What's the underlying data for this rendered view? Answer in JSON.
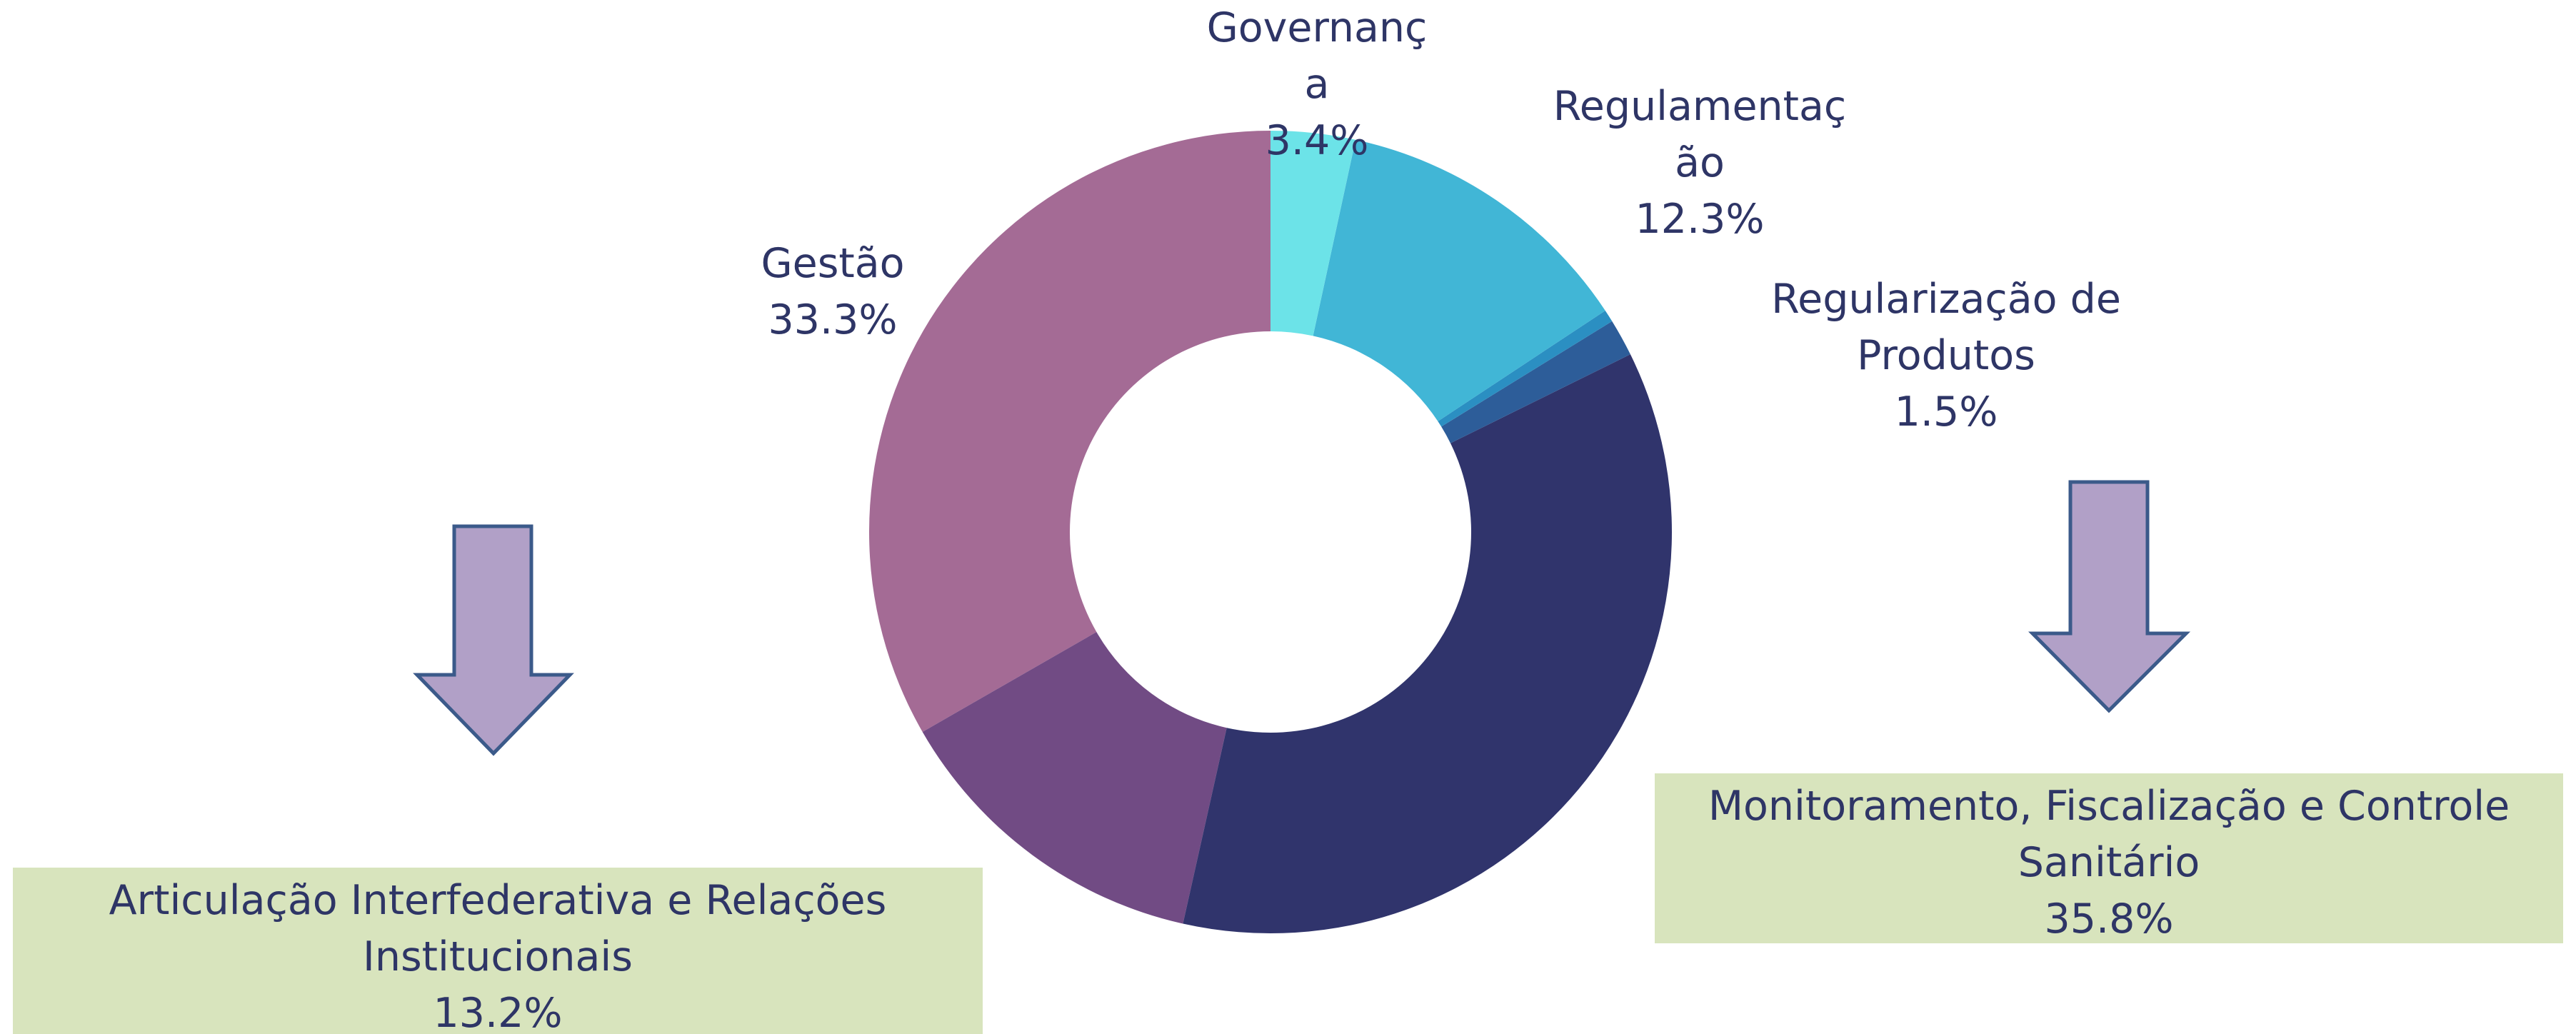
{
  "chart_data": {
    "type": "donut",
    "categories": [
      "Governança",
      "Regulamentação",
      null,
      "Regularização de Produtos",
      "Monitoramento, Fiscalização e Controle Sanitário",
      "Articulação Interfederativa e Relações Institucionais",
      "Gestão"
    ],
    "values": [
      3.4,
      12.3,
      0.5,
      1.5,
      35.8,
      13.2,
      33.3
    ],
    "value_labels": [
      "3.4%",
      "12.3%",
      null,
      "1.5%",
      "35.8%",
      "13.2%",
      "33.3%"
    ],
    "colors": [
      "#6ce3e8",
      "#41b6d6",
      "#2b8fc2",
      "#2d5d99",
      "#30346c",
      "#714b84",
      "#a46b95"
    ]
  }
}
